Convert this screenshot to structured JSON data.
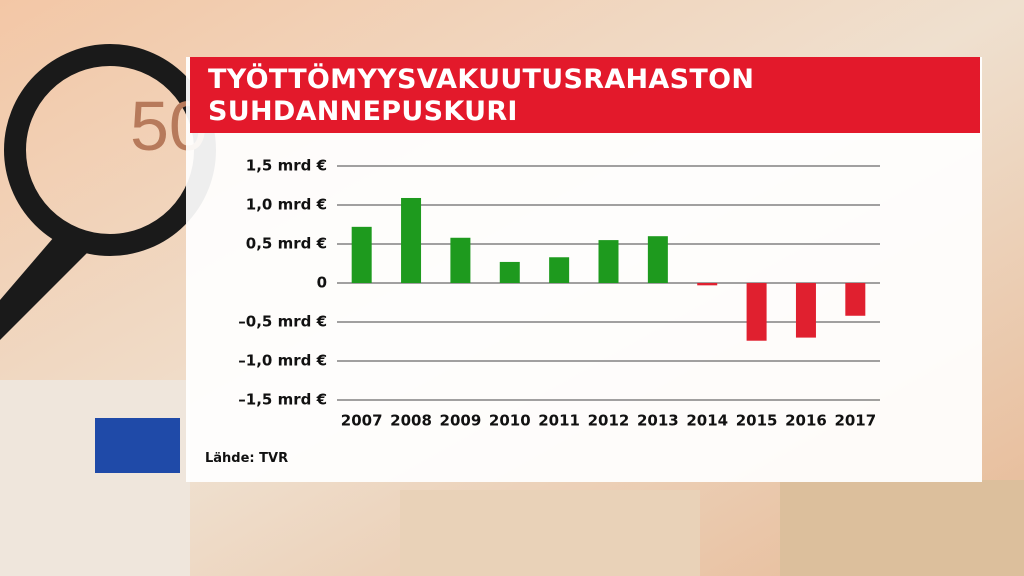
{
  "chart_data": {
    "type": "bar",
    "title": "TYÖTTÖMYYSVAKUUTUSRAHASTON SUHDANNEPUSKURI",
    "categories": [
      "2007",
      "2008",
      "2009",
      "2010",
      "2011",
      "2012",
      "2013",
      "2014",
      "2015",
      "2016",
      "2017"
    ],
    "values": [
      0.72,
      1.09,
      0.58,
      0.27,
      0.33,
      0.55,
      0.6,
      -0.03,
      -0.74,
      -0.7,
      -0.42
    ],
    "positive_color": "#1e9a1e",
    "negative_color": "#e0202f",
    "ylim": [
      -1.5,
      1.5
    ],
    "yticks": [
      {
        "value": 1.5,
        "label": "1,5 mrd €"
      },
      {
        "value": 1.0,
        "label": "1,0 mrd €"
      },
      {
        "value": 0.5,
        "label": "0,5 mrd €"
      },
      0,
      {
        "value": -0.5,
        "label": "–0,5 mrd €"
      },
      {
        "value": -1.0,
        "label": "–1,0 mrd €"
      },
      {
        "value": -1.5,
        "label": "–1,5 mrd €"
      }
    ],
    "grid": true,
    "source": "Lähde: TVR"
  }
}
